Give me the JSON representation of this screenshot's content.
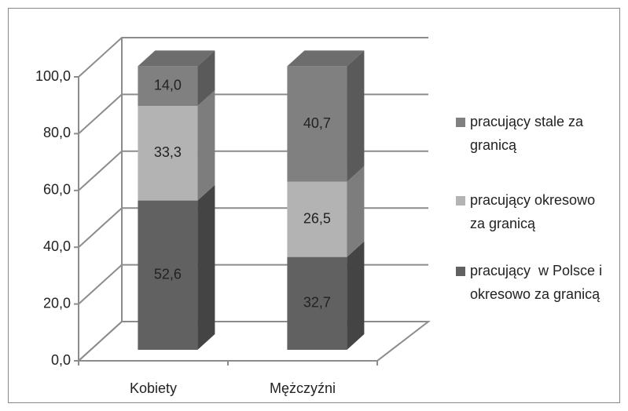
{
  "chart_data": {
    "type": "bar3d_stacked",
    "categories": [
      "Kobiety",
      "Mężczyźni"
    ],
    "series": [
      {
        "name": "pracujący  w Polsce i okresowo za granicą",
        "color": "#616161",
        "values": [
          52.6,
          32.7
        ],
        "value_labels": [
          "52,6",
          "32,7"
        ]
      },
      {
        "name": "pracujący okresowo za granicą",
        "color": "#b3b3b3",
        "values": [
          33.3,
          26.5
        ],
        "value_labels": [
          "33,3",
          "26,5"
        ]
      },
      {
        "name": "pracujący stale za granicą",
        "color": "#808080",
        "values": [
          14.0,
          40.7
        ],
        "value_labels": [
          "14,0",
          "40,7"
        ]
      }
    ],
    "ylim": [
      0,
      100
    ],
    "yticks": [
      {
        "value": 0,
        "label": "0,0"
      },
      {
        "value": 20,
        "label": "20,0"
      },
      {
        "value": 40,
        "label": "40,0"
      },
      {
        "value": 60,
        "label": "60,0"
      },
      {
        "value": 80,
        "label": "80,0"
      },
      {
        "value": 100,
        "label": "100,0"
      }
    ],
    "grid": true,
    "legend": "right"
  }
}
